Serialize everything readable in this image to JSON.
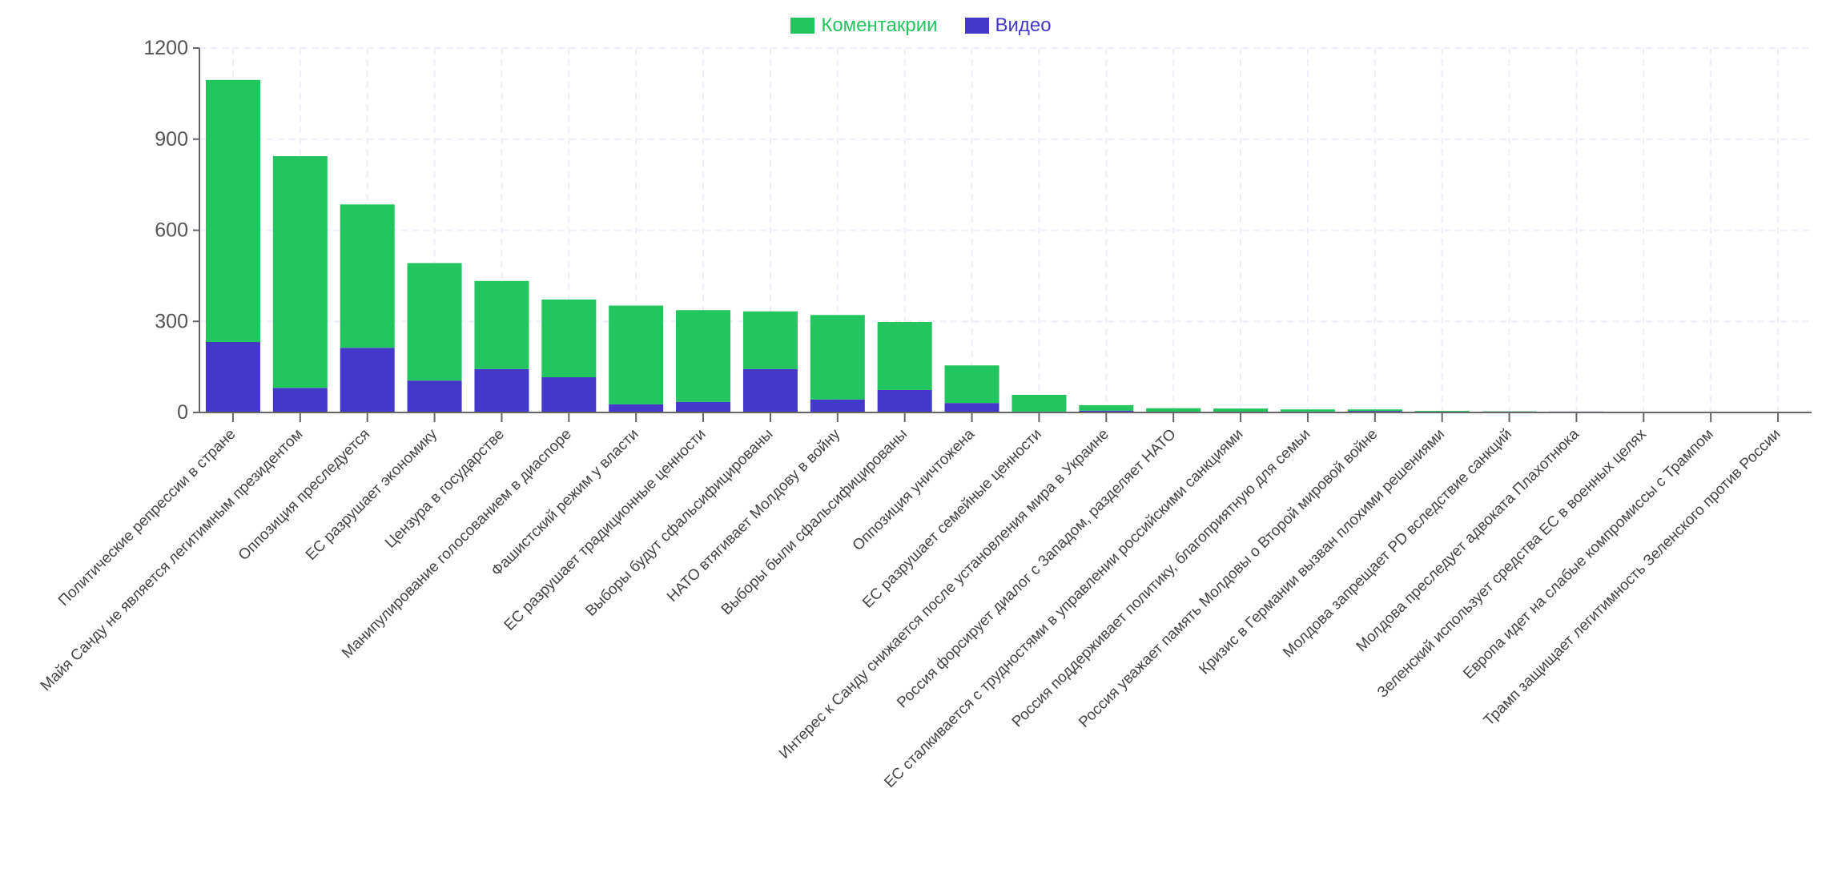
{
  "chart_data": {
    "type": "bar",
    "stacked": true,
    "title": "",
    "xlabel": "",
    "ylabel": "",
    "ylim": [
      0,
      1200
    ],
    "yticks": [
      0,
      300,
      600,
      900,
      1200
    ],
    "grid": true,
    "legend_position": "top-center",
    "categories": [
      "Политические репрессии в стране",
      "Майя Санду не является легитимным президентом",
      "Оппозиция преследуется",
      "ЕС разрушает экономику",
      "Цензура в государстве",
      "Манипулирование голосованием в диаспоре",
      "Фашистский режим у власти",
      "ЕС разрушает традиционные ценности",
      "Выборы будут сфальсифицированы",
      "НАТО втягивает Молдову в войну",
      "Выборы были сфальсифицированы",
      "Оппозиция уничтожена",
      "ЕС разрушает семейные ценности",
      "Интерес к Санду снижается после установления мира в Украине",
      "Россия форсирует диалог с Западом, разделяет НАТО",
      "ЕС сталкивается с трудностями в управлении российскими санкциями",
      "Россия поддерживает политику, благоприятную для семьи",
      "Россия уважает память Молдовы о Второй мировой войне",
      "Кризис в Германии вызван плохими решениями",
      "Молдова запрещает PD вследствие санкций",
      "Молдова преследует адвоката Плахотнюка",
      "Зеленский использует средства ЕС в военных целях",
      "Европа идет на слабые компромиссы с Трампом",
      "Трамп защищает легитимность Зеленского против России"
    ],
    "series": [
      {
        "name": "Видео",
        "color": "#4338ca",
        "values": [
          232,
          81,
          213,
          105,
          143,
          116,
          27,
          35,
          143,
          43,
          74,
          31,
          3,
          6,
          2,
          2,
          3,
          5,
          0,
          3,
          3,
          0,
          0,
          0
        ]
      },
      {
        "name": "Коментакрии",
        "color": "#22c55e",
        "values": [
          863,
          763,
          472,
          387,
          290,
          256,
          325,
          302,
          190,
          278,
          224,
          124,
          55,
          18,
          12,
          11,
          7,
          5,
          5,
          1,
          0,
          2,
          0,
          0
        ]
      }
    ]
  }
}
